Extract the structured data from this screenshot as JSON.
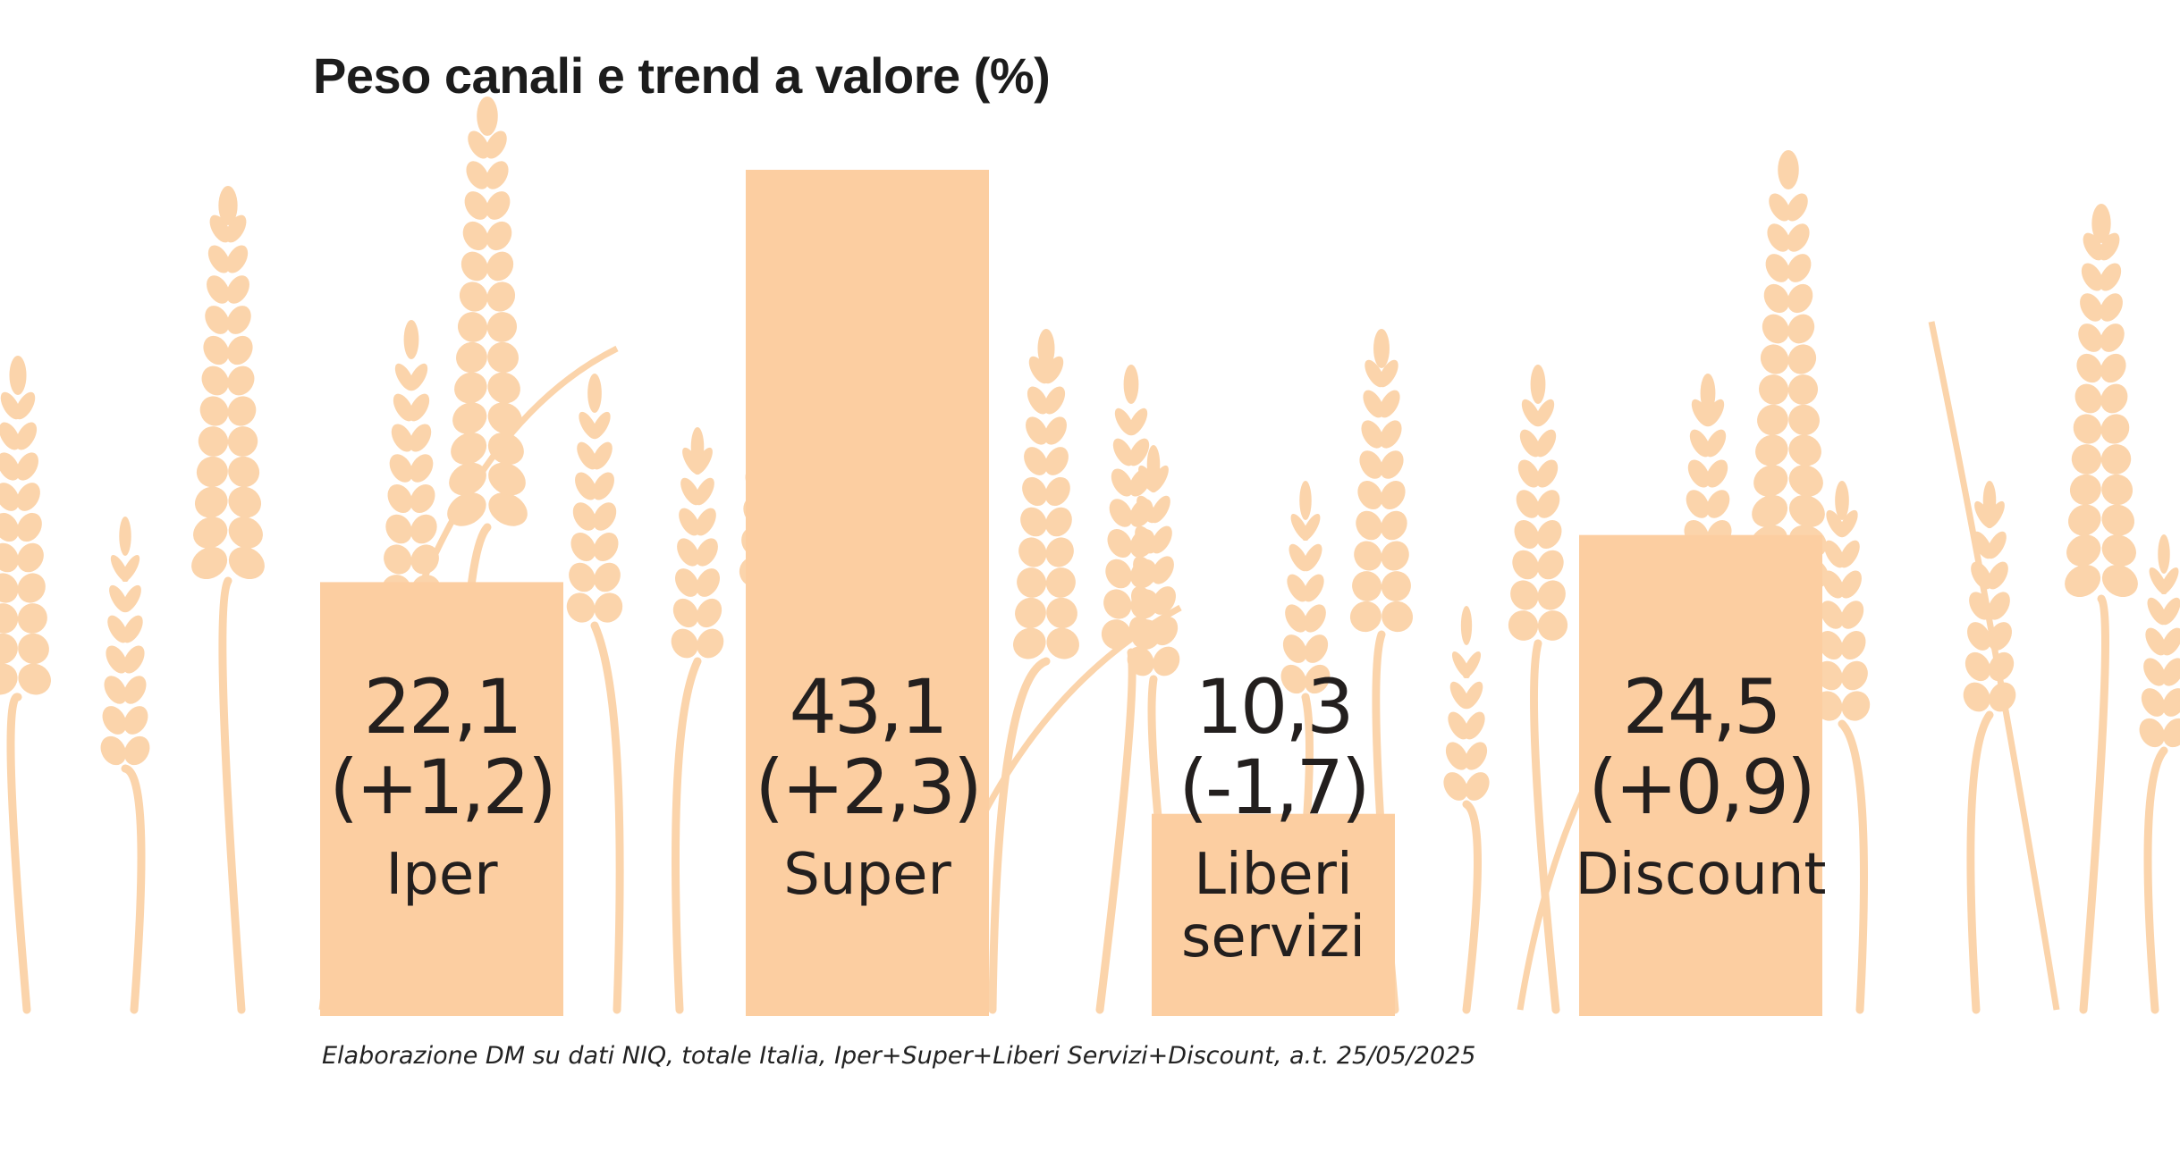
{
  "title": "Peso canali e trend a valore (%)",
  "source": "Elaborazione DM su dati NIQ, totale Italia, Iper+Super+Liberi Servizi+Discount, a.t. 25/05/2025",
  "colors": {
    "bar": "#fccea1",
    "wheat": "#fbd4ab",
    "text": "#231f1e"
  },
  "chart_data": {
    "type": "bar",
    "title": "Peso canali e trend a valore (%)",
    "categories": [
      [
        "Iper"
      ],
      [
        "Super"
      ],
      [
        "Liberi",
        "servizi"
      ],
      [
        "Discount"
      ]
    ],
    "values": [
      22.1,
      43.1,
      10.3,
      24.5
    ],
    "value_labels": [
      "22,1",
      "43,1",
      "10,3",
      "24,5"
    ],
    "trend_labels": [
      "(+1,2)",
      "(+2,3)",
      "(-1,7)",
      "(+0,9)"
    ],
    "trend": [
      1.2,
      2.3,
      -1.7,
      0.9
    ],
    "xlabel": "",
    "ylabel": "",
    "grid": false
  }
}
